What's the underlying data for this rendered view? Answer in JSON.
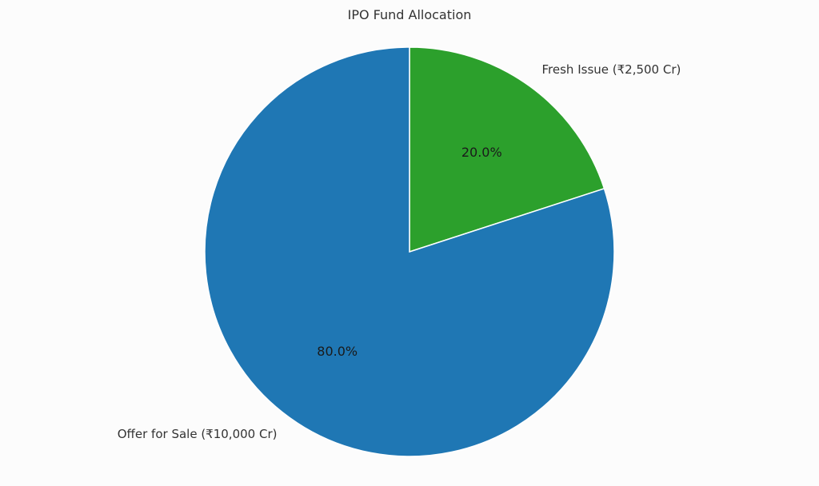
{
  "chart_data": {
    "type": "pie",
    "title": "IPO Fund Allocation",
    "categories": [
      "Fresh Issue (₹2,500 Cr)",
      "Offer for Sale (₹10,000 Cr)"
    ],
    "values": [
      2500,
      10000
    ],
    "percent_labels": [
      "20.0%",
      "80.0%"
    ],
    "colors": [
      "#2ca02c",
      "#1f77b4"
    ],
    "start_angle_deg": 90,
    "direction": "clockwise",
    "legend": "none"
  }
}
